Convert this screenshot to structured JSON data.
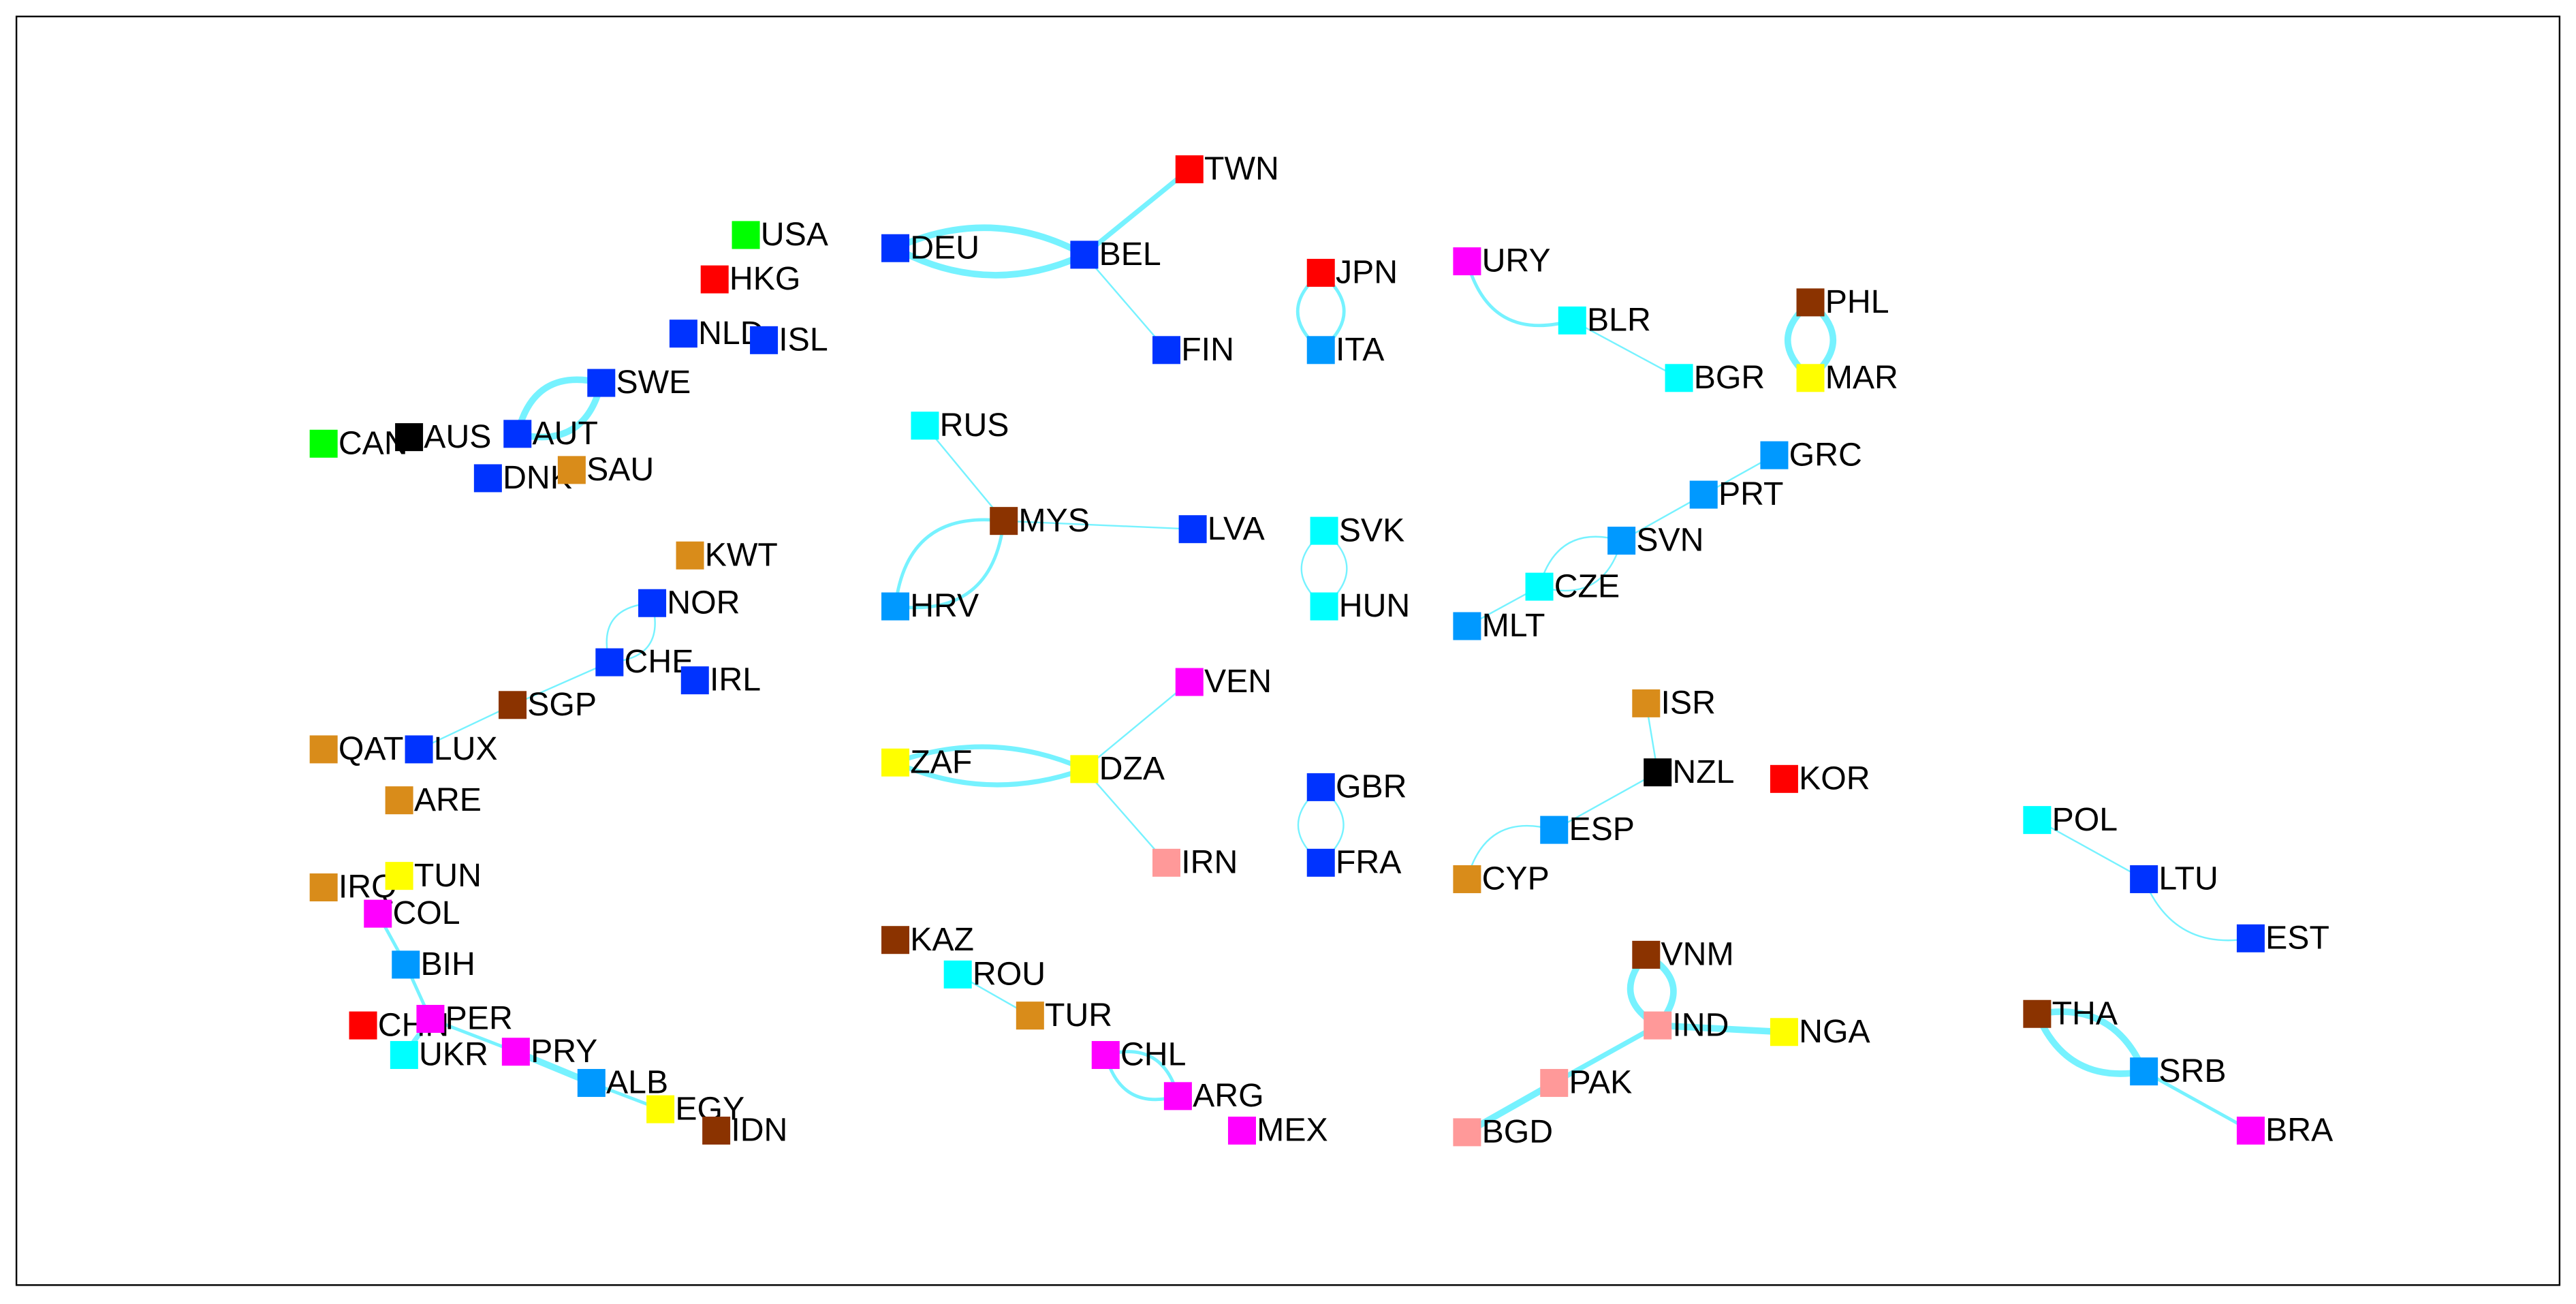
{
  "nodes": [
    {
      "label": "USA",
      "color": "#00ff00"
    },
    {
      "label": "HKG",
      "color": "#ff0000"
    },
    {
      "label": "NLD",
      "color": "#0033ff"
    },
    {
      "label": "ISL",
      "color": "#0033ff"
    },
    {
      "label": "SWE",
      "color": "#0033ff"
    },
    {
      "label": "CAN",
      "color": "#00ff00"
    },
    {
      "label": "AUS",
      "color": "#000000"
    },
    {
      "label": "AUT",
      "color": "#0033ff"
    },
    {
      "label": "DNK",
      "color": "#0033ff"
    },
    {
      "label": "SAU",
      "color": "#d98c1a"
    },
    {
      "label": "KWT",
      "color": "#d98c1a"
    },
    {
      "label": "NOR",
      "color": "#0033ff"
    },
    {
      "label": "CHE",
      "color": "#0033ff"
    },
    {
      "label": "IRL",
      "color": "#0033ff"
    },
    {
      "label": "SGP",
      "color": "#8b3300"
    },
    {
      "label": "QAT",
      "color": "#d98c1a"
    },
    {
      "label": "LUX",
      "color": "#0033ff"
    },
    {
      "label": "ARE",
      "color": "#d98c1a"
    },
    {
      "label": "IRQ",
      "color": "#d98c1a"
    },
    {
      "label": "TUN",
      "color": "#ffff00"
    },
    {
      "label": "COL",
      "color": "#ff00ff"
    },
    {
      "label": "BIH",
      "color": "#0099ff"
    },
    {
      "label": "CHN",
      "color": "#ff0000"
    },
    {
      "label": "PER",
      "color": "#ff00ff"
    },
    {
      "label": "UKR",
      "color": "#00ffff"
    },
    {
      "label": "PRY",
      "color": "#ff00ff"
    },
    {
      "label": "ALB",
      "color": "#0099ff"
    },
    {
      "label": "EGY",
      "color": "#ffff00"
    },
    {
      "label": "IDN",
      "color": "#8b3300"
    },
    {
      "label": "DEU",
      "color": "#0033ff"
    },
    {
      "label": "BEL",
      "color": "#0033ff"
    },
    {
      "label": "TWN",
      "color": "#ff0000"
    },
    {
      "label": "FIN",
      "color": "#0033ff"
    },
    {
      "label": "JPN",
      "color": "#ff0000"
    },
    {
      "label": "ITA",
      "color": "#0099ff"
    },
    {
      "label": "URY",
      "color": "#ff00ff"
    },
    {
      "label": "BLR",
      "color": "#00ffff"
    },
    {
      "label": "BGR",
      "color": "#00ffff"
    },
    {
      "label": "PHL",
      "color": "#8b3300"
    },
    {
      "label": "MAR",
      "color": "#ffff00"
    },
    {
      "label": "RUS",
      "color": "#00ffff"
    },
    {
      "label": "MYS",
      "color": "#8b3300"
    },
    {
      "label": "LVA",
      "color": "#0033ff"
    },
    {
      "label": "HRV",
      "color": "#0099ff"
    },
    {
      "label": "SVK",
      "color": "#00ffff"
    },
    {
      "label": "HUN",
      "color": "#00ffff"
    },
    {
      "label": "GRC",
      "color": "#0099ff"
    },
    {
      "label": "PRT",
      "color": "#0099ff"
    },
    {
      "label": "SVN",
      "color": "#0099ff"
    },
    {
      "label": "CZE",
      "color": "#00ffff"
    },
    {
      "label": "MLT",
      "color": "#0099ff"
    },
    {
      "label": "VEN",
      "color": "#ff00ff"
    },
    {
      "label": "ZAF",
      "color": "#ffff00"
    },
    {
      "label": "DZA",
      "color": "#ffff00"
    },
    {
      "label": "IRN",
      "color": "#ff9999"
    },
    {
      "label": "GBR",
      "color": "#0033ff"
    },
    {
      "label": "FRA",
      "color": "#0033ff"
    },
    {
      "label": "ISR",
      "color": "#d98c1a"
    },
    {
      "label": "NZL",
      "color": "#000000"
    },
    {
      "label": "KOR",
      "color": "#ff0000"
    },
    {
      "label": "ESP",
      "color": "#0099ff"
    },
    {
      "label": "CYP",
      "color": "#d98c1a"
    },
    {
      "label": "POL",
      "color": "#00ffff"
    },
    {
      "label": "LTU",
      "color": "#0033ff"
    },
    {
      "label": "EST",
      "color": "#0033ff"
    },
    {
      "label": "KAZ",
      "color": "#8b3300"
    },
    {
      "label": "ROU",
      "color": "#00ffff"
    },
    {
      "label": "TUR",
      "color": "#d98c1a"
    },
    {
      "label": "CHL",
      "color": "#ff00ff"
    },
    {
      "label": "ARG",
      "color": "#ff00ff"
    },
    {
      "label": "MEX",
      "color": "#ff00ff"
    },
    {
      "label": "VNM",
      "color": "#8b3300"
    },
    {
      "label": "IND",
      "color": "#ff9999"
    },
    {
      "label": "NGA",
      "color": "#ffff00"
    },
    {
      "label": "PAK",
      "color": "#ff9999"
    },
    {
      "label": "BGD",
      "color": "#ff9999"
    },
    {
      "label": "THA",
      "color": "#8b3300"
    },
    {
      "label": "SRB",
      "color": "#0099ff"
    },
    {
      "label": "BRA",
      "color": "#ff00ff"
    }
  ]
}
